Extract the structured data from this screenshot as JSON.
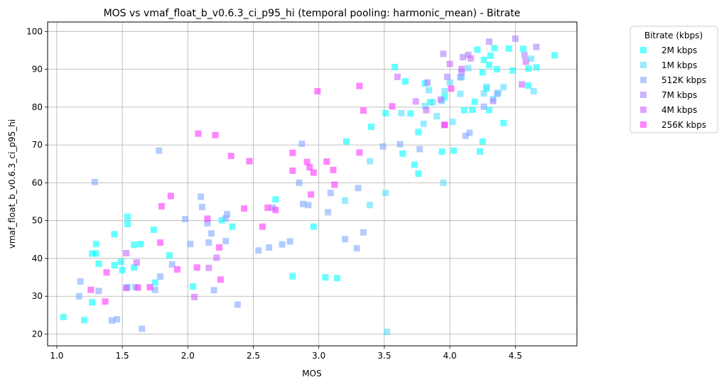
{
  "chart_data": {
    "type": "scatter",
    "title": "MOS vs vmaf_float_b_v0.6.3_ci_p95_hi (temporal pooling: harmonic_mean) - Bitrate",
    "xlabel": "MOS",
    "ylabel": "vmaf_float_b_v0.6.3_ci_p95_hi",
    "xlim": [
      0.93,
      4.97
    ],
    "ylim": [
      16.9,
      102.5
    ],
    "xticks": [
      "1.0",
      "1.5",
      "2.0",
      "2.5",
      "3.0",
      "3.5",
      "4.0",
      "4.5"
    ],
    "xtick_values": [
      1.0,
      1.5,
      2.0,
      2.5,
      3.0,
      3.5,
      4.0,
      4.5
    ],
    "yticks": [
      "20",
      "30",
      "40",
      "50",
      "60",
      "70",
      "80",
      "90",
      "100"
    ],
    "ytick_values": [
      20,
      30,
      40,
      50,
      60,
      70,
      80,
      90,
      100
    ],
    "grid": true,
    "marker": "square",
    "legend": {
      "title": "Bitrate (kbps)",
      "position": "outside-top-right"
    },
    "series": [
      {
        "name": "2M kbps",
        "color": "#00ffff",
        "points": [
          [
            1.05,
            24.5
          ],
          [
            1.21,
            23.7
          ],
          [
            1.27,
            28.4
          ],
          [
            1.27,
            41.3
          ],
          [
            1.3,
            41.3
          ],
          [
            1.3,
            43.8
          ],
          [
            1.32,
            38.6
          ],
          [
            1.44,
            38.2
          ],
          [
            1.44,
            46.4
          ],
          [
            1.49,
            39.1
          ],
          [
            1.5,
            36.9
          ],
          [
            1.54,
            32.4
          ],
          [
            1.54,
            51.0
          ],
          [
            1.54,
            49.1
          ],
          [
            1.59,
            43.6
          ],
          [
            1.59,
            37.6
          ],
          [
            1.64,
            43.8
          ],
          [
            1.74,
            47.6
          ],
          [
            1.75,
            33.6
          ],
          [
            1.86,
            40.8
          ],
          [
            2.04,
            32.6
          ],
          [
            2.26,
            50.1
          ],
          [
            2.34,
            48.4
          ],
          [
            2.67,
            55.6
          ],
          [
            2.8,
            35.3
          ],
          [
            2.96,
            48.4
          ],
          [
            3.05,
            35.0
          ],
          [
            3.14,
            34.8
          ],
          [
            3.21,
            70.9
          ],
          [
            3.4,
            74.8
          ],
          [
            3.51,
            78.4
          ],
          [
            3.58,
            90.6
          ],
          [
            3.64,
            67.7
          ],
          [
            3.66,
            86.8
          ],
          [
            3.7,
            78.3
          ],
          [
            3.73,
            64.8
          ],
          [
            3.76,
            73.4
          ],
          [
            3.76,
            62.4
          ],
          [
            3.81,
            86.3
          ],
          [
            3.85,
            81.3
          ],
          [
            3.94,
            68.2
          ],
          [
            3.96,
            82.6
          ],
          [
            4.03,
            68.5
          ],
          [
            4.11,
            79.2
          ],
          [
            4.17,
            79.3
          ],
          [
            4.19,
            81.4
          ],
          [
            4.21,
            95.2
          ],
          [
            4.23,
            68.3
          ],
          [
            4.25,
            70.9
          ],
          [
            4.25,
            89.2
          ],
          [
            4.26,
            92.5
          ],
          [
            4.28,
            84.9
          ],
          [
            4.3,
            91.1
          ],
          [
            4.3,
            79.2
          ],
          [
            4.31,
            93.6
          ],
          [
            4.34,
            95.6
          ],
          [
            4.36,
            90.0
          ],
          [
            4.41,
            75.8
          ],
          [
            4.45,
            95.5
          ],
          [
            4.48,
            89.7
          ],
          [
            4.56,
            95.4
          ],
          [
            4.6,
            85.7
          ],
          [
            4.6,
            90.2
          ],
          [
            4.66,
            90.5
          ],
          [
            4.8,
            93.7
          ]
        ]
      },
      {
        "name": "1M kbps",
        "color": "#55ddff",
        "points": [
          [
            3.2,
            55.3
          ],
          [
            3.39,
            54.1
          ],
          [
            3.39,
            65.7
          ],
          [
            3.51,
            57.3
          ],
          [
            3.52,
            20.6
          ],
          [
            3.63,
            78.4
          ],
          [
            3.8,
            75.6
          ],
          [
            3.81,
            80.3
          ],
          [
            3.84,
            84.5
          ],
          [
            3.87,
            81.3
          ],
          [
            3.9,
            77.6
          ],
          [
            3.94,
            81.6
          ],
          [
            3.95,
            60.0
          ],
          [
            3.96,
            84.2
          ],
          [
            4.0,
            86.5
          ],
          [
            4.02,
            76.1
          ],
          [
            4.08,
            83.5
          ],
          [
            4.09,
            87.9
          ],
          [
            4.14,
            90.3
          ],
          [
            4.26,
            83.6
          ],
          [
            4.28,
            85.4
          ],
          [
            4.33,
            82.1
          ],
          [
            4.37,
            83.8
          ],
          [
            4.41,
            85.3
          ],
          [
            4.62,
            92.8
          ],
          [
            4.64,
            84.2
          ]
        ]
      },
      {
        "name": "512K kbps",
        "color": "#80aaff",
        "points": [
          [
            1.17,
            30.0
          ],
          [
            1.18,
            33.9
          ],
          [
            1.29,
            60.2
          ],
          [
            1.32,
            31.4
          ],
          [
            1.42,
            23.6
          ],
          [
            1.46,
            23.9
          ],
          [
            1.6,
            32.4
          ],
          [
            1.65,
            21.4
          ],
          [
            1.75,
            31.7
          ],
          [
            1.78,
            68.5
          ],
          [
            1.79,
            35.2
          ],
          [
            1.88,
            38.4
          ],
          [
            1.98,
            50.4
          ],
          [
            2.02,
            43.8
          ],
          [
            2.1,
            56.3
          ],
          [
            2.11,
            53.6
          ],
          [
            2.15,
            49.3
          ],
          [
            2.16,
            44.2
          ],
          [
            2.18,
            46.6
          ],
          [
            2.2,
            31.6
          ],
          [
            2.29,
            50.6
          ],
          [
            2.29,
            44.6
          ],
          [
            2.3,
            51.7
          ],
          [
            2.38,
            27.8
          ],
          [
            2.54,
            42.1
          ],
          [
            2.62,
            42.9
          ],
          [
            2.65,
            53.4
          ],
          [
            2.72,
            43.7
          ],
          [
            2.78,
            44.5
          ],
          [
            2.85,
            60.0
          ],
          [
            2.87,
            70.3
          ],
          [
            2.88,
            54.4
          ],
          [
            2.92,
            54.1
          ],
          [
            3.07,
            52.2
          ],
          [
            3.09,
            57.3
          ],
          [
            3.2,
            45.1
          ],
          [
            3.29,
            42.7
          ],
          [
            3.3,
            58.6
          ],
          [
            3.34,
            46.9
          ],
          [
            3.49,
            69.6
          ],
          [
            3.62,
            70.2
          ],
          [
            3.77,
            68.9
          ],
          [
            4.08,
            87.9
          ],
          [
            4.12,
            72.4
          ],
          [
            4.15,
            73.2
          ],
          [
            4.26,
            80.1
          ],
          [
            4.36,
            83.5
          ]
        ]
      },
      {
        "name": "7M kbps",
        "color": "#aa80ff",
        "points": [
          [
            3.83,
            86.5
          ],
          [
            3.95,
            94.1
          ],
          [
            3.98,
            88.0
          ],
          [
            4.09,
            89.3
          ],
          [
            4.1,
            93.2
          ],
          [
            4.14,
            93.8
          ],
          [
            4.3,
            97.3
          ],
          [
            4.33,
            81.6
          ],
          [
            4.5,
            98.1
          ],
          [
            4.57,
            93.7
          ],
          [
            4.66,
            95.9
          ]
        ]
      },
      {
        "name": "4M kbps",
        "color": "#cc66ff",
        "points": [
          [
            1.53,
            41.4
          ],
          [
            1.61,
            38.9
          ],
          [
            2.05,
            29.8
          ],
          [
            2.16,
            37.5
          ],
          [
            2.22,
            40.2
          ],
          [
            3.6,
            88.0
          ],
          [
            3.74,
            81.5
          ],
          [
            3.82,
            79.2
          ],
          [
            3.93,
            82.0
          ],
          [
            3.96,
            75.3
          ],
          [
            4.0,
            91.4
          ],
          [
            4.09,
            90.1
          ],
          [
            4.16,
            92.9
          ],
          [
            4.55,
            86.0
          ],
          [
            4.58,
            92.0
          ]
        ]
      },
      {
        "name": "256K kbps",
        "color": "#ff33ff",
        "points": [
          [
            1.26,
            31.7
          ],
          [
            1.37,
            28.6
          ],
          [
            1.38,
            36.3
          ],
          [
            1.53,
            32.2
          ],
          [
            1.62,
            32.3
          ],
          [
            1.71,
            32.4
          ],
          [
            1.79,
            44.2
          ],
          [
            1.8,
            53.8
          ],
          [
            1.87,
            56.5
          ],
          [
            1.92,
            37.1
          ],
          [
            2.07,
            37.6
          ],
          [
            2.08,
            73.0
          ],
          [
            2.15,
            50.5
          ],
          [
            2.21,
            72.6
          ],
          [
            2.24,
            42.9
          ],
          [
            2.25,
            34.4
          ],
          [
            2.33,
            67.1
          ],
          [
            2.43,
            53.2
          ],
          [
            2.47,
            65.7
          ],
          [
            2.57,
            48.4
          ],
          [
            2.61,
            53.4
          ],
          [
            2.67,
            52.8
          ],
          [
            2.8,
            67.9
          ],
          [
            2.8,
            63.2
          ],
          [
            2.91,
            65.5
          ],
          [
            2.93,
            64.1
          ],
          [
            2.94,
            56.9
          ],
          [
            2.96,
            62.7
          ],
          [
            2.99,
            84.2
          ],
          [
            3.06,
            65.6
          ],
          [
            3.11,
            63.4
          ],
          [
            3.12,
            59.5
          ],
          [
            3.31,
            68.0
          ],
          [
            3.31,
            85.6
          ],
          [
            3.34,
            79.1
          ],
          [
            3.56,
            80.2
          ],
          [
            3.96,
            75.3
          ],
          [
            4.01,
            84.9
          ]
        ]
      }
    ]
  }
}
